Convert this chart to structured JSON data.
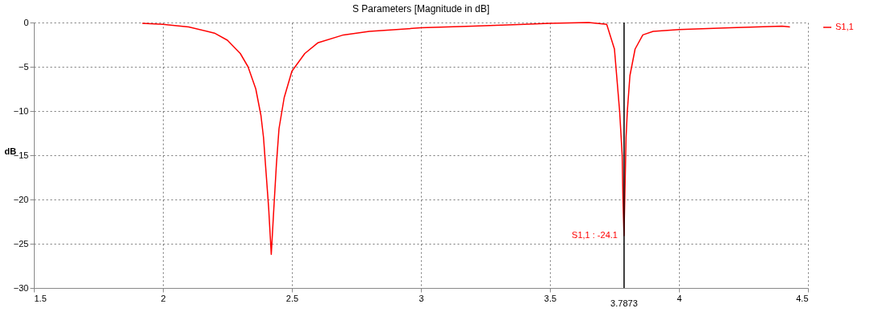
{
  "chart_data": {
    "type": "line",
    "title": "S Parameters [Magnitude in dB]",
    "ylabel": "dB",
    "x": [
      1.92,
      2.0,
      2.1,
      2.2,
      2.25,
      2.3,
      2.33,
      2.36,
      2.38,
      2.39,
      2.4,
      2.41,
      2.42,
      2.43,
      2.44,
      2.45,
      2.47,
      2.5,
      2.55,
      2.6,
      2.7,
      2.8,
      3.0,
      3.2,
      3.4,
      3.5,
      3.65,
      3.72,
      3.75,
      3.77,
      3.78,
      3.783,
      3.787,
      3.79,
      3.795,
      3.8,
      3.81,
      3.83,
      3.86,
      3.9,
      4.0,
      4.2,
      4.4,
      4.43
    ],
    "series": [
      {
        "name": "S1,1",
        "color": "#ff0000",
        "values": [
          -0.1,
          -0.2,
          -0.5,
          -1.2,
          -2,
          -3.5,
          -5,
          -7.5,
          -10.5,
          -13,
          -17,
          -21,
          -26.2,
          -21,
          -16,
          -12,
          -8.5,
          -5.5,
          -3.5,
          -2.3,
          -1.4,
          -1.0,
          -0.6,
          -0.4,
          -0.2,
          -0.1,
          0,
          -0.2,
          -3,
          -10,
          -15,
          -20,
          -24.1,
          -20,
          -13,
          -10,
          -6,
          -3,
          -1.4,
          -1.0,
          -0.8,
          -0.6,
          -0.4,
          -0.5
        ]
      }
    ],
    "xlim": [
      1.5,
      4.5
    ],
    "xticks": [
      1.5,
      2,
      2.5,
      3,
      3.5,
      4,
      4.5
    ],
    "ylim": [
      -30,
      0
    ],
    "yticks": [
      -30,
      -25,
      -20,
      -15,
      -10,
      -5,
      0
    ],
    "ref_lines": [
      {
        "axis": "x",
        "value": 3.7873,
        "label": "3.7873",
        "color": "#000000"
      }
    ],
    "annotations": [
      {
        "text": "S1,1 : -24.1",
        "x": 3.7873,
        "y": -24.1
      }
    ],
    "grid": true,
    "legend": "top right",
    "marker": "none",
    "line_style": "solid"
  }
}
